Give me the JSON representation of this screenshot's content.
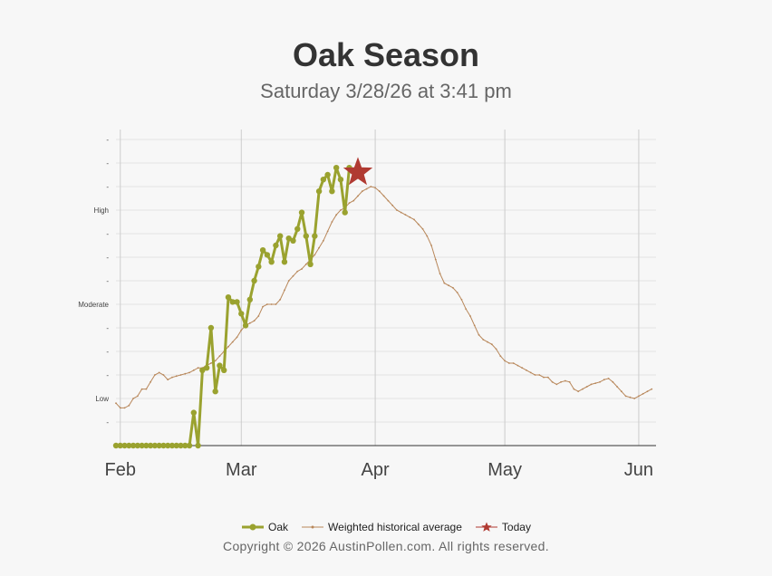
{
  "title": "Oak Season",
  "subtitle": "Saturday 3/28/26 at 3:41 pm",
  "copyright": "Copyright © 2026 AustinPollen.com.  All rights reserved.",
  "colors": {
    "oak": "#9aa22f",
    "average": "#b8875a",
    "today": "#b03a32",
    "grid": "#e3e3e3",
    "month_line": "#cccccc"
  },
  "legend": [
    {
      "label": "Oak",
      "key": "oak"
    },
    {
      "label": "Weighted historical average",
      "key": "average"
    },
    {
      "label": "Today",
      "key": "today"
    }
  ],
  "chart_data": {
    "type": "line",
    "title": "Oak Season",
    "x_unit": "day of year 2026",
    "y_unit": "pollen level index (0 = none, 13 = top of scale)",
    "xlim": [
      32,
      156
    ],
    "ylim": [
      0,
      13.5
    ],
    "x_ticks": [
      {
        "label": "Feb",
        "x": 32
      },
      {
        "label": "Mar",
        "x": 60
      },
      {
        "label": "Apr",
        "x": 91
      },
      {
        "label": "May",
        "x": 121
      },
      {
        "label": "Jun",
        "x": 152
      }
    ],
    "y_ticks": [
      {
        "label": "-",
        "y": 1
      },
      {
        "label": "Low",
        "y": 2
      },
      {
        "label": "-",
        "y": 3
      },
      {
        "label": "-",
        "y": 4
      },
      {
        "label": "-",
        "y": 5
      },
      {
        "label": "Moderate",
        "y": 6
      },
      {
        "label": "-",
        "y": 7
      },
      {
        "label": "-",
        "y": 8
      },
      {
        "label": "-",
        "y": 9
      },
      {
        "label": "High",
        "y": 10
      },
      {
        "label": "-",
        "y": 11
      },
      {
        "label": "-",
        "y": 12
      },
      {
        "label": "-",
        "y": 13
      }
    ],
    "grid": true,
    "legend_position": "bottom",
    "series": [
      {
        "name": "Oak",
        "color_key": "oak",
        "points": [
          [
            31,
            0
          ],
          [
            32,
            0
          ],
          [
            33,
            0
          ],
          [
            34,
            0
          ],
          [
            35,
            0
          ],
          [
            36,
            0
          ],
          [
            37,
            0
          ],
          [
            38,
            0
          ],
          [
            39,
            0
          ],
          [
            40,
            0
          ],
          [
            41,
            0
          ],
          [
            42,
            0
          ],
          [
            43,
            0
          ],
          [
            44,
            0
          ],
          [
            45,
            0
          ],
          [
            46,
            0
          ],
          [
            47,
            0
          ],
          [
            48,
            0
          ],
          [
            49,
            1.4
          ],
          [
            50,
            0
          ],
          [
            51,
            3.2
          ],
          [
            52,
            3.3
          ],
          [
            53,
            5.0
          ],
          [
            54,
            2.3
          ],
          [
            55,
            3.4
          ],
          [
            56,
            3.2
          ],
          [
            57,
            6.3
          ],
          [
            58,
            6.1
          ],
          [
            59,
            6.1
          ],
          [
            60,
            5.6
          ],
          [
            61,
            5.1
          ],
          [
            62,
            6.2
          ],
          [
            63,
            7.0
          ],
          [
            64,
            7.6
          ],
          [
            65,
            8.3
          ],
          [
            66,
            8.1
          ],
          [
            67,
            7.8
          ],
          [
            68,
            8.5
          ],
          [
            69,
            8.9
          ],
          [
            70,
            7.8
          ],
          [
            71,
            8.8
          ],
          [
            72,
            8.7
          ],
          [
            73,
            9.2
          ],
          [
            74,
            9.9
          ],
          [
            75,
            8.9
          ],
          [
            76,
            7.7
          ],
          [
            77,
            8.9
          ],
          [
            78,
            10.8
          ],
          [
            79,
            11.3
          ],
          [
            80,
            11.5
          ],
          [
            81,
            10.8
          ],
          [
            82,
            11.8
          ],
          [
            83,
            11.3
          ],
          [
            84,
            9.9
          ],
          [
            85,
            11.8
          ]
        ]
      },
      {
        "name": "Weighted historical average",
        "color_key": "average",
        "points": [
          [
            31,
            1.8
          ],
          [
            32,
            1.6
          ],
          [
            33,
            1.6
          ],
          [
            34,
            1.7
          ],
          [
            35,
            2.0
          ],
          [
            36,
            2.1
          ],
          [
            37,
            2.4
          ],
          [
            38,
            2.4
          ],
          [
            39,
            2.7
          ],
          [
            40,
            3.0
          ],
          [
            41,
            3.1
          ],
          [
            42,
            3.0
          ],
          [
            43,
            2.8
          ],
          [
            44,
            2.9
          ],
          [
            45,
            2.95
          ],
          [
            46,
            3.0
          ],
          [
            47,
            3.05
          ],
          [
            48,
            3.1
          ],
          [
            49,
            3.2
          ],
          [
            50,
            3.3
          ],
          [
            51,
            3.3
          ],
          [
            52,
            3.4
          ],
          [
            53,
            3.5
          ],
          [
            54,
            3.6
          ],
          [
            55,
            3.8
          ],
          [
            56,
            4.0
          ],
          [
            57,
            4.2
          ],
          [
            58,
            4.4
          ],
          [
            59,
            4.6
          ],
          [
            60,
            4.9
          ],
          [
            61,
            5.1
          ],
          [
            62,
            5.2
          ],
          [
            63,
            5.3
          ],
          [
            64,
            5.5
          ],
          [
            65,
            5.9
          ],
          [
            66,
            6.0
          ],
          [
            67,
            6.0
          ],
          [
            68,
            6.0
          ],
          [
            69,
            6.2
          ],
          [
            70,
            6.6
          ],
          [
            71,
            7.0
          ],
          [
            72,
            7.2
          ],
          [
            73,
            7.4
          ],
          [
            74,
            7.5
          ],
          [
            75,
            7.7
          ],
          [
            76,
            7.9
          ],
          [
            77,
            8.1
          ],
          [
            78,
            8.4
          ],
          [
            79,
            8.7
          ],
          [
            80,
            9.1
          ],
          [
            81,
            9.5
          ],
          [
            82,
            9.8
          ],
          [
            83,
            10.0
          ],
          [
            84,
            10.1
          ],
          [
            85,
            10.3
          ],
          [
            86,
            10.4
          ],
          [
            87,
            10.6
          ],
          [
            88,
            10.8
          ],
          [
            89,
            10.9
          ],
          [
            90,
            11.0
          ],
          [
            91,
            10.95
          ],
          [
            92,
            10.8
          ],
          [
            93,
            10.6
          ],
          [
            94,
            10.4
          ],
          [
            95,
            10.2
          ],
          [
            96,
            10.0
          ],
          [
            97,
            9.9
          ],
          [
            98,
            9.8
          ],
          [
            99,
            9.7
          ],
          [
            100,
            9.6
          ],
          [
            101,
            9.4
          ],
          [
            102,
            9.2
          ],
          [
            103,
            8.9
          ],
          [
            104,
            8.5
          ],
          [
            105,
            7.9
          ],
          [
            106,
            7.3
          ],
          [
            107,
            6.9
          ],
          [
            108,
            6.8
          ],
          [
            109,
            6.7
          ],
          [
            110,
            6.5
          ],
          [
            111,
            6.2
          ],
          [
            112,
            5.8
          ],
          [
            113,
            5.5
          ],
          [
            114,
            5.1
          ],
          [
            115,
            4.7
          ],
          [
            116,
            4.5
          ],
          [
            117,
            4.4
          ],
          [
            118,
            4.3
          ],
          [
            119,
            4.1
          ],
          [
            120,
            3.8
          ],
          [
            121,
            3.6
          ],
          [
            122,
            3.5
          ],
          [
            123,
            3.5
          ],
          [
            124,
            3.4
          ],
          [
            125,
            3.3
          ],
          [
            126,
            3.2
          ],
          [
            127,
            3.1
          ],
          [
            128,
            3.0
          ],
          [
            129,
            3.0
          ],
          [
            130,
            2.9
          ],
          [
            131,
            2.9
          ],
          [
            132,
            2.7
          ],
          [
            133,
            2.6
          ],
          [
            134,
            2.7
          ],
          [
            135,
            2.75
          ],
          [
            136,
            2.7
          ],
          [
            137,
            2.4
          ],
          [
            138,
            2.3
          ],
          [
            139,
            2.4
          ],
          [
            140,
            2.5
          ],
          [
            141,
            2.6
          ],
          [
            142,
            2.65
          ],
          [
            143,
            2.7
          ],
          [
            144,
            2.8
          ],
          [
            145,
            2.85
          ],
          [
            146,
            2.7
          ],
          [
            147,
            2.5
          ],
          [
            148,
            2.3
          ],
          [
            149,
            2.1
          ],
          [
            150,
            2.05
          ],
          [
            151,
            2.0
          ],
          [
            152,
            2.1
          ],
          [
            153,
            2.2
          ],
          [
            154,
            2.3
          ],
          [
            155,
            2.4
          ]
        ]
      }
    ],
    "today": {
      "name": "Today",
      "x": 87,
      "y": 11.6
    }
  }
}
